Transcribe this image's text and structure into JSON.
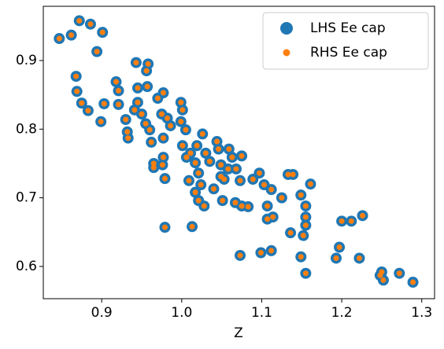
{
  "chart_data": {
    "type": "scatter",
    "xlabel": "Z",
    "x": [
      0.847,
      0.862,
      0.872,
      0.886,
      0.901,
      0.894,
      0.868,
      0.869,
      0.875,
      0.883,
      0.899,
      0.903,
      0.918,
      0.921,
      0.921,
      0.93,
      0.932,
      0.933,
      0.943,
      0.958,
      0.956,
      0.957,
      0.945,
      0.945,
      0.941,
      0.95,
      0.955,
      0.96,
      0.962,
      0.965,
      0.965,
      0.975,
      0.97,
      0.977,
      0.982,
      0.986,
      0.977,
      0.977,
      0.976,
      0.979,
      0.979,
      0.999,
      1.001,
      0.999,
      1.005,
      1.001,
      1.006,
      1.011,
      1.009,
      1.013,
      1.019,
      1.026,
      1.017,
      1.021,
      1.024,
      1.017,
      1.021,
      1.028,
      1.03,
      1.035,
      1.04,
      1.044,
      1.046,
      1.049,
      1.049,
      1.053,
      1.051,
      1.059,
      1.063,
      1.058,
      1.068,
      1.073,
      1.067,
      1.075,
      1.083,
      1.075,
      1.097,
      1.089,
      1.103,
      1.107,
      1.112,
      1.107,
      1.114,
      1.125,
      1.133,
      1.139,
      1.136,
      1.149,
      1.155,
      1.155,
      1.155,
      1.152,
      1.149,
      1.155,
      1.161,
      1.073,
      1.099,
      1.112,
      1.2,
      1.212,
      1.226,
      1.197,
      1.193,
      1.222,
      1.25,
      1.252,
      1.248,
      1.272,
      1.289
    ],
    "series": [
      {
        "name": "LHS Ee cap",
        "color": "#1f77b4",
        "values": [
          0.932,
          0.937,
          0.958,
          0.953,
          0.941,
          0.913,
          0.877,
          0.855,
          0.838,
          0.827,
          0.811,
          0.837,
          0.869,
          0.856,
          0.836,
          0.814,
          0.796,
          0.787,
          0.897,
          0.895,
          0.885,
          0.862,
          0.86,
          0.839,
          0.828,
          0.822,
          0.808,
          0.799,
          0.781,
          0.744,
          0.75,
          0.822,
          0.845,
          0.853,
          0.816,
          0.805,
          0.787,
          0.759,
          0.748,
          0.728,
          0.657,
          0.839,
          0.828,
          0.811,
          0.799,
          0.776,
          0.759,
          0.765,
          0.725,
          0.658,
          0.776,
          0.793,
          0.751,
          0.736,
          0.719,
          0.708,
          0.696,
          0.688,
          0.765,
          0.753,
          0.713,
          0.782,
          0.771,
          0.748,
          0.731,
          0.727,
          0.696,
          0.771,
          0.759,
          0.742,
          0.742,
          0.725,
          0.693,
          0.688,
          0.687,
          0.761,
          0.736,
          0.727,
          0.719,
          0.688,
          0.712,
          0.669,
          0.672,
          0.7,
          0.734,
          0.734,
          0.649,
          0.704,
          0.688,
          0.672,
          0.66,
          0.645,
          0.614,
          0.59,
          0.72,
          0.616,
          0.62,
          0.623,
          0.666,
          0.666,
          0.674,
          0.628,
          0.612,
          0.612,
          0.592,
          0.58,
          0.587,
          0.59,
          0.577
        ]
      },
      {
        "name": "RHS Ee cap",
        "color": "#ff7f0e",
        "values": [
          0.932,
          0.937,
          0.958,
          0.953,
          0.941,
          0.913,
          0.877,
          0.855,
          0.838,
          0.827,
          0.811,
          0.837,
          0.869,
          0.856,
          0.836,
          0.814,
          0.796,
          0.787,
          0.897,
          0.895,
          0.885,
          0.862,
          0.86,
          0.839,
          0.828,
          0.822,
          0.808,
          0.799,
          0.781,
          0.744,
          0.75,
          0.822,
          0.845,
          0.853,
          0.816,
          0.805,
          0.787,
          0.759,
          0.748,
          0.728,
          0.657,
          0.839,
          0.828,
          0.811,
          0.799,
          0.776,
          0.759,
          0.765,
          0.725,
          0.658,
          0.776,
          0.793,
          0.751,
          0.736,
          0.719,
          0.708,
          0.696,
          0.688,
          0.765,
          0.753,
          0.713,
          0.782,
          0.771,
          0.748,
          0.731,
          0.727,
          0.696,
          0.771,
          0.759,
          0.742,
          0.742,
          0.725,
          0.693,
          0.688,
          0.687,
          0.761,
          0.736,
          0.727,
          0.719,
          0.688,
          0.712,
          0.669,
          0.672,
          0.7,
          0.734,
          0.734,
          0.649,
          0.704,
          0.688,
          0.672,
          0.66,
          0.645,
          0.614,
          0.59,
          0.72,
          0.616,
          0.62,
          0.623,
          0.666,
          0.666,
          0.674,
          0.628,
          0.612,
          0.612,
          0.592,
          0.58,
          0.587,
          0.59,
          0.577
        ]
      }
    ],
    "xlim": [
      0.827,
      1.316
    ],
    "ylim": [
      0.553,
      0.979
    ],
    "xticks": [
      0.9,
      {
        "value": 1.0,
        "label": "1.0"
      },
      1.1,
      1.2,
      1.3
    ],
    "yticks": [
      0.6,
      0.7,
      0.8,
      0.9
    ],
    "legend": "upper right"
  }
}
